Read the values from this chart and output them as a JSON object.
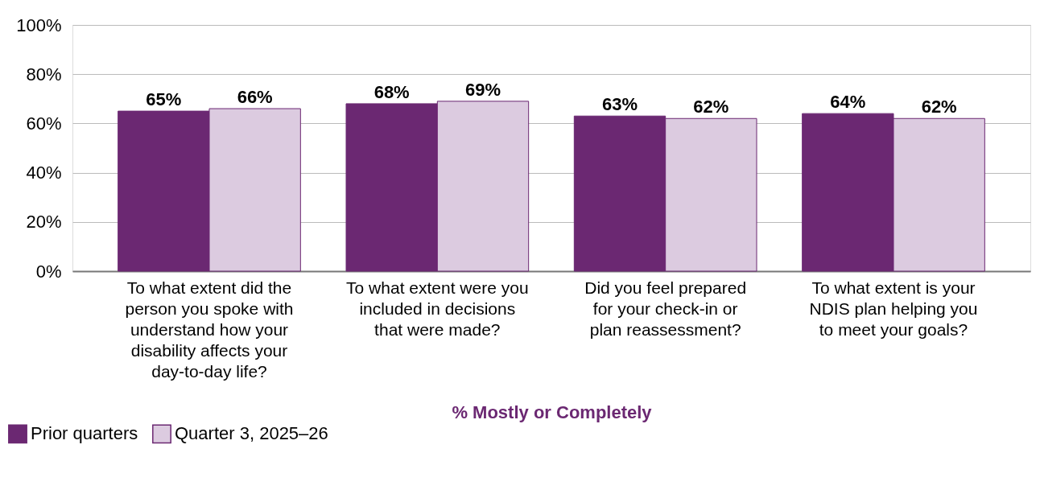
{
  "chart_data": {
    "type": "bar",
    "categories": [
      "To what extent did the person you spoke with understand how your disability affects your day-to-day life?",
      "To what extent were you included in decisions that were made?",
      "Did you feel prepared for your check-in or plan reassessment?",
      "To what extent is your NDIS plan helping you to meet your goals?"
    ],
    "xlabel": "% Mostly or Completely",
    "series": [
      {
        "name": "Prior quarters",
        "color": "#6b2872",
        "values": [
          65,
          68,
          63,
          64
        ],
        "value_labels": [
          "65%",
          "68%",
          "63%",
          "64%"
        ]
      },
      {
        "name": "Quarter 3, 2025–26",
        "color": "#dccbe0",
        "values": [
          66,
          69,
          62,
          62
        ],
        "value_labels": [
          "66%",
          "69%",
          "62%",
          "62%"
        ]
      }
    ],
    "ylim": [
      0,
      100
    ],
    "yticks": [
      {
        "value": 0,
        "label": "0%"
      },
      {
        "value": 20,
        "label": "20%"
      },
      {
        "value": 40,
        "label": "40%"
      },
      {
        "value": 60,
        "label": "60%"
      },
      {
        "value": 80,
        "label": "80%"
      },
      {
        "value": 100,
        "label": "100%"
      }
    ],
    "grid": "y",
    "legend": "bottom left"
  }
}
